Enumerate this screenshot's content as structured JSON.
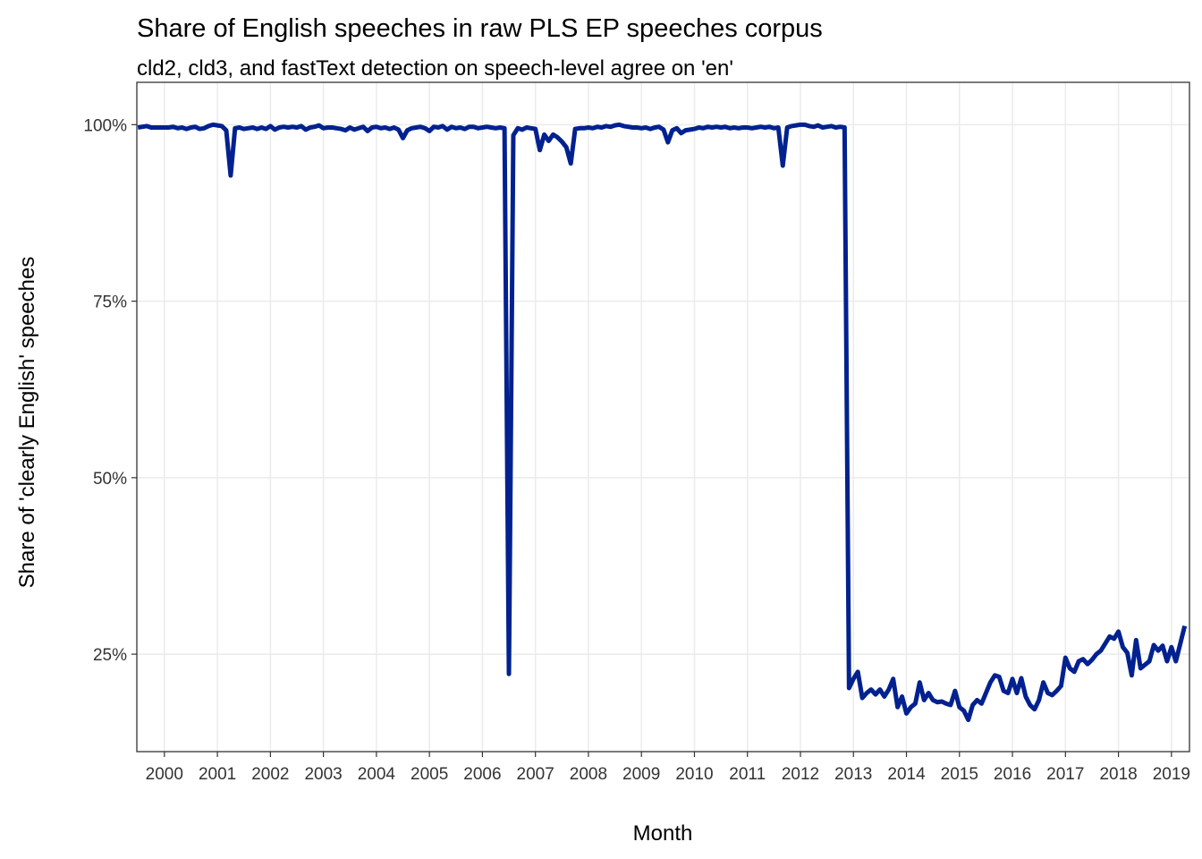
{
  "chart_data": {
    "type": "line",
    "title": "Share of English speeches in raw PLS EP speeches corpus",
    "subtitle": "cld2, cld3, and fastText detection on speech-level agree on 'en'",
    "x_label": "Month",
    "y_label": "Share of 'clearly English' speeches",
    "color": "#00218f",
    "grid": true,
    "xlim": [
      1999.48,
      2019.34
    ],
    "xticks": [
      2000,
      2001,
      2002,
      2003,
      2004,
      2005,
      2006,
      2007,
      2008,
      2009,
      2010,
      2011,
      2012,
      2013,
      2014,
      2015,
      2016,
      2017,
      2018,
      2019
    ],
    "ylim": [
      11.2,
      106
    ],
    "yticks": [
      {
        "value": 25,
        "label": "25%"
      },
      {
        "value": 50,
        "label": "50%"
      },
      {
        "value": 75,
        "label": "75%"
      },
      {
        "value": 100,
        "label": "100%"
      }
    ],
    "x": [
      1999.5,
      1999.583,
      1999.667,
      1999.75,
      1999.833,
      1999.917,
      2000,
      2000.083,
      2000.167,
      2000.25,
      2000.333,
      2000.417,
      2000.5,
      2000.583,
      2000.667,
      2000.75,
      2000.833,
      2000.917,
      2001,
      2001.083,
      2001.167,
      2001.25,
      2001.333,
      2001.417,
      2001.5,
      2001.583,
      2001.667,
      2001.75,
      2001.833,
      2001.917,
      2002,
      2002.083,
      2002.167,
      2002.25,
      2002.333,
      2002.417,
      2002.5,
      2002.583,
      2002.667,
      2002.75,
      2002.833,
      2002.917,
      2003,
      2003.083,
      2003.167,
      2003.25,
      2003.333,
      2003.417,
      2003.5,
      2003.583,
      2003.667,
      2003.75,
      2003.833,
      2003.917,
      2004,
      2004.083,
      2004.167,
      2004.25,
      2004.333,
      2004.417,
      2004.5,
      2004.583,
      2004.667,
      2004.75,
      2004.833,
      2004.917,
      2005,
      2005.083,
      2005.167,
      2005.25,
      2005.333,
      2005.417,
      2005.5,
      2005.583,
      2005.667,
      2005.75,
      2005.833,
      2005.917,
      2006,
      2006.083,
      2006.167,
      2006.25,
      2006.333,
      2006.417,
      2006.5,
      2006.583,
      2006.667,
      2006.75,
      2006.833,
      2006.917,
      2007,
      2007.083,
      2007.167,
      2007.25,
      2007.333,
      2007.417,
      2007.5,
      2007.583,
      2007.667,
      2007.75,
      2007.833,
      2007.917,
      2008,
      2008.083,
      2008.167,
      2008.25,
      2008.333,
      2008.417,
      2008.5,
      2008.583,
      2008.667,
      2008.75,
      2008.833,
      2008.917,
      2009,
      2009.083,
      2009.167,
      2009.25,
      2009.333,
      2009.417,
      2009.5,
      2009.583,
      2009.667,
      2009.75,
      2009.833,
      2009.917,
      2010,
      2010.083,
      2010.167,
      2010.25,
      2010.333,
      2010.417,
      2010.5,
      2010.583,
      2010.667,
      2010.75,
      2010.833,
      2010.917,
      2011,
      2011.083,
      2011.167,
      2011.25,
      2011.333,
      2011.417,
      2011.5,
      2011.583,
      2011.667,
      2011.75,
      2011.833,
      2011.917,
      2012,
      2012.083,
      2012.167,
      2012.25,
      2012.333,
      2012.417,
      2012.5,
      2012.583,
      2012.667,
      2012.75,
      2012.833,
      2012.917,
      2013,
      2013.083,
      2013.167,
      2013.25,
      2013.333,
      2013.417,
      2013.5,
      2013.583,
      2013.667,
      2013.75,
      2013.833,
      2013.917,
      2014,
      2014.083,
      2014.167,
      2014.25,
      2014.333,
      2014.417,
      2014.5,
      2014.583,
      2014.667,
      2014.75,
      2014.833,
      2014.917,
      2015,
      2015.083,
      2015.167,
      2015.25,
      2015.333,
      2015.417,
      2015.5,
      2015.583,
      2015.667,
      2015.75,
      2015.833,
      2015.917,
      2016,
      2016.083,
      2016.167,
      2016.25,
      2016.333,
      2016.417,
      2016.5,
      2016.583,
      2016.667,
      2016.75,
      2016.833,
      2016.917,
      2017,
      2017.083,
      2017.167,
      2017.25,
      2017.333,
      2017.417,
      2017.5,
      2017.583,
      2017.667,
      2017.75,
      2017.833,
      2017.917,
      2018,
      2018.083,
      2018.167,
      2018.25,
      2018.333,
      2018.417,
      2018.5,
      2018.583,
      2018.667,
      2018.75,
      2018.833,
      2018.917,
      2019,
      2019.083,
      2019.167,
      2019.25
    ],
    "values": [
      99.6,
      99.7,
      99.8,
      99.6,
      99.6,
      99.6,
      99.6,
      99.6,
      99.7,
      99.5,
      99.6,
      99.4,
      99.6,
      99.7,
      99.4,
      99.5,
      99.8,
      100,
      99.9,
      99.8,
      99.2,
      92.8,
      99.5,
      99.6,
      99.4,
      99.5,
      99.6,
      99.4,
      99.6,
      99.4,
      99.8,
      99.3,
      99.6,
      99.7,
      99.6,
      99.7,
      99.6,
      99.8,
      99.3,
      99.6,
      99.7,
      99.9,
      99.5,
      99.6,
      99.6,
      99.5,
      99.4,
      99.2,
      99.6,
      99.3,
      99.5,
      99.7,
      99.1,
      99.6,
      99.7,
      99.5,
      99.6,
      99.4,
      99.6,
      99.3,
      98.1,
      99.2,
      99.5,
      99.6,
      99.7,
      99.5,
      99.1,
      99.7,
      99.6,
      99.8,
      99.3,
      99.7,
      99.5,
      99.6,
      99.4,
      99.7,
      99.7,
      99.5,
      99.6,
      99.7,
      99.6,
      99.5,
      99.6,
      99.5,
      22.2,
      98.5,
      99.5,
      99.3,
      99.6,
      99.5,
      99.4,
      96.4,
      98.6,
      97.7,
      98.6,
      98.2,
      97.6,
      96.8,
      94.5,
      99.4,
      99.5,
      99.5,
      99.6,
      99.5,
      99.7,
      99.6,
      99.8,
      99.7,
      99.9,
      100,
      99.8,
      99.7,
      99.6,
      99.6,
      99.5,
      99.6,
      99.4,
      99.6,
      99.7,
      99.3,
      97.5,
      99.2,
      99.5,
      98.8,
      99.2,
      99.3,
      99.4,
      99.6,
      99.5,
      99.7,
      99.6,
      99.7,
      99.6,
      99.7,
      99.5,
      99.6,
      99.5,
      99.6,
      99.6,
      99.5,
      99.6,
      99.7,
      99.6,
      99.7,
      99.5,
      99.6,
      94.2,
      99.6,
      99.8,
      99.9,
      100,
      100,
      99.8,
      99.7,
      99.9,
      99.6,
      99.7,
      99.8,
      99.6,
      99.7,
      99.6,
      20.2,
      21.5,
      22.5,
      18.8,
      19.5,
      20,
      19.3,
      20,
      19,
      20,
      21.5,
      17.5,
      19,
      16.6,
      17.5,
      18,
      21,
      18.5,
      19.5,
      18.5,
      18.2,
      18.3,
      18,
      17.8,
      19.8,
      17.5,
      17,
      15.7,
      17.8,
      18.5,
      18,
      19.5,
      21,
      22,
      21.8,
      19.8,
      19.5,
      21.5,
      19.5,
      21.6,
      19,
      17.8,
      17.2,
      18.5,
      21,
      19.5,
      19.2,
      19.8,
      20.5,
      24.5,
      23,
      22.5,
      24,
      24.3,
      23.6,
      24.2,
      25,
      25.5,
      26.5,
      27.5,
      27.2,
      28.2,
      26,
      25.2,
      22,
      27,
      23,
      23.5,
      24,
      26.3,
      25.5,
      26.2,
      24,
      26,
      24,
      26.5,
      29
    ]
  }
}
